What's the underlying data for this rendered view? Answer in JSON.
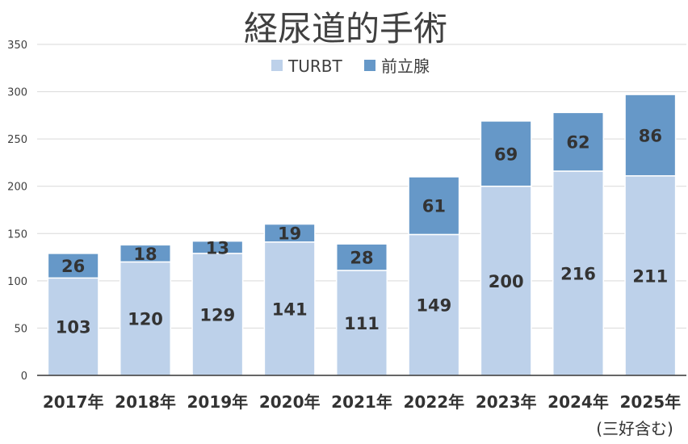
{
  "chart_data": {
    "type": "bar",
    "stacked": true,
    "title": "経尿道的手術",
    "categories": [
      "2017年",
      "2018年",
      "2019年",
      "2020年",
      "2021年",
      "2022年",
      "2023年",
      "2024年",
      "2025年"
    ],
    "category_note": "(三好含む)",
    "series": [
      {
        "name": "TURBT",
        "color": "#bdd1ea",
        "values": [
          103,
          120,
          129,
          141,
          111,
          149,
          200,
          216,
          211
        ]
      },
      {
        "name": "前立腺",
        "color": "#6698c8",
        "values": [
          26,
          18,
          13,
          19,
          28,
          61,
          69,
          62,
          86
        ]
      }
    ],
    "ylim": [
      0,
      350
    ],
    "yticks": [
      0,
      50,
      100,
      150,
      200,
      250,
      300,
      350
    ],
    "grid": true,
    "legend": "top"
  }
}
